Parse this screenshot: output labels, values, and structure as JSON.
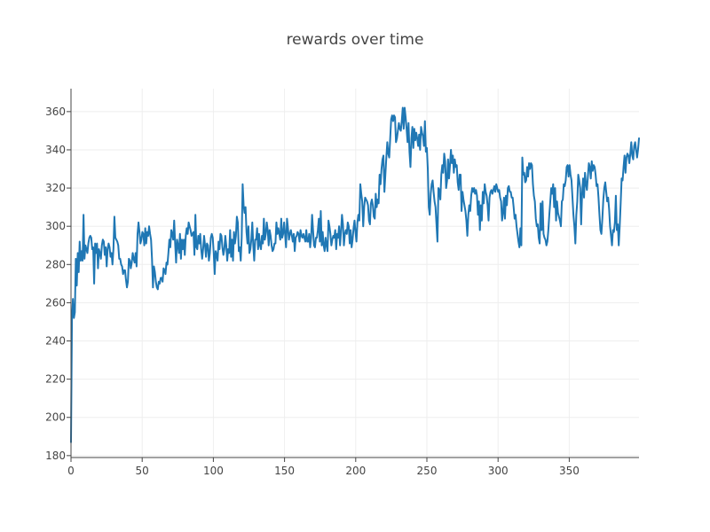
{
  "chart_data": {
    "type": "line",
    "title": "rewards over time",
    "xlabel": "",
    "ylabel": "",
    "xlim": [
      0,
      399
    ],
    "ylim": [
      179,
      372
    ],
    "x_ticks": [
      0,
      50,
      100,
      150,
      200,
      250,
      300,
      350
    ],
    "y_ticks": [
      180,
      200,
      220,
      240,
      260,
      280,
      300,
      320,
      340,
      360
    ],
    "grid": true,
    "legend": "none",
    "colors": {
      "series": "#1f77b4",
      "grid": "#eeeeee",
      "axis": "#444444",
      "text": "#444444"
    },
    "series": [
      {
        "values": [
          187,
          252,
          262,
          252,
          255,
          283,
          269,
          286,
          276,
          292,
          282,
          287,
          282,
          306,
          283,
          290,
          288,
          286,
          291,
          294,
          295,
          294,
          288,
          289,
          270,
          291,
          286,
          291,
          278,
          288,
          286,
          283,
          290,
          293,
          292,
          285,
          289,
          279,
          288,
          291,
          289,
          284,
          286,
          280,
          288,
          305,
          294,
          293,
          292,
          290,
          283,
          283,
          280,
          279,
          275,
          277,
          277,
          272,
          268,
          271,
          283,
          282,
          278,
          281,
          286,
          283,
          281,
          286,
          279,
          296,
          302,
          297,
          291,
          293,
          297,
          296,
          290,
          299,
          291,
          297,
          295,
          300,
          296,
          293,
          283,
          268,
          279,
          276,
          271,
          268,
          267,
          271,
          270,
          273,
          273,
          271,
          278,
          277,
          275,
          281,
          280,
          286,
          293,
          289,
          298,
          296,
          293,
          303,
          291,
          281,
          293,
          290,
          286,
          296,
          283,
          293,
          288,
          293,
          285,
          295,
          299,
          296,
          302,
          300,
          298,
          295,
          296,
          297,
          285,
          306,
          289,
          288,
          295,
          291,
          296,
          288,
          283,
          288,
          295,
          290,
          284,
          291,
          290,
          282,
          286,
          294,
          296,
          294,
          286,
          275,
          287,
          285,
          282,
          292,
          288,
          296,
          295,
          289,
          285,
          288,
          295,
          290,
          282,
          288,
          286,
          298,
          284,
          293,
          282,
          297,
          291,
          295,
          305,
          302,
          287,
          289,
          282,
          294,
          322,
          311,
          307,
          310,
          297,
          291,
          300,
          286,
          288,
          293,
          302,
          290,
          282,
          293,
          293,
          299,
          288,
          296,
          290,
          288,
          295,
          291
        ]
      },
      {
        "values": [
          304,
          293,
          296,
          302,
          298,
          290,
          298,
          295,
          290,
          287,
          288,
          291,
          291,
          302,
          296,
          299,
          296,
          293,
          304,
          294,
          296,
          302,
          296,
          289,
          304,
          299,
          293,
          296,
          298,
          295,
          292,
          296,
          287,
          294,
          295,
          297,
          296,
          292,
          298,
          295,
          294,
          296,
          294,
          292,
          298,
          292,
          292,
          296,
          289,
          294,
          306,
          298,
          290,
          289,
          294,
          294,
          298,
          304,
          292,
          308,
          290,
          297,
          290,
          287,
          294,
          290,
          287,
          303,
          300,
          296,
          290,
          293,
          295,
          294,
          298,
          288,
          296,
          294,
          300,
          290,
          297,
          306,
          301,
          290,
          296,
          298,
          296,
          302,
          300,
          291,
          298,
          289,
          293,
          299,
          303,
          297,
          292,
          302,
          306,
          303,
          322,
          317,
          313,
          300,
          310,
          315,
          314,
          313,
          311,
          303,
          301,
          312,
          314,
          311,
          305,
          304,
          317,
          310,
          314,
          312,
          327,
          322,
          330,
          335,
          337,
          318,
          327,
          336,
          344,
          338,
          336,
          346,
          356,
          358,
          355,
          358,
          357,
          344,
          346,
          350,
          354,
          351,
          350,
          355,
          362,
          351,
          362,
          357,
          351,
          344,
          354,
          339,
          331,
          346,
          352,
          341,
          351,
          345,
          349,
          346,
          342,
          348,
          340,
          352,
          349,
          347,
          342,
          355,
          339,
          341,
          330,
          310,
          306,
          317,
          322,
          324,
          318,
          313,
          310,
          301,
          292,
          320,
          319,
          314,
          327,
          332,
          328,
          338,
          334,
          320,
          324,
          335,
          325,
          332,
          340,
          333,
          337,
          328,
          335,
          331,
          332,
          323,
          319,
          327,
          327,
          308,
          318,
          314,
          311,
          308,
          303,
          295,
          306,
          311,
          308,
          316,
          320,
          318,
          320,
          317,
          319,
          316,
          306,
          313,
          298,
          311,
          303,
          318,
          312,
          322,
          318,
          316,
          311,
          303,
          315,
          318,
          319,
          317,
          319,
          321,
          318,
          322,
          320,
          318,
          319,
          315,
          313,
          303,
          307,
          315,
          304,
          316,
          311,
          320,
          321,
          318,
          318,
          315,
          315,
          310,
          304,
          306,
          300,
          296,
          292,
          289,
          299,
          290,
          336,
          327,
          328,
          323,
          324,
          331,
          326,
          333,
          330,
          333,
          332,
          322,
          316,
          313,
          304,
          300,
          301,
          294,
          291,
          312,
          298,
          313,
          296,
          294,
          293,
          290,
          292,
          298,
          306,
          313,
          320,
          317,
          322,
          310,
          320,
          303,
          313,
          307,
          305,
          303,
          300,
          313,
          314,
          322,
          321,
          324,
          331,
          332,
          326,
          332,
          327,
          324,
          315,
          306,
          300,
          291,
          306,
          313,
          327,
          324,
          320,
          301,
          317,
          325,
          315,
          328,
          322,
          319,
          326,
          333,
          331,
          325,
          334,
          329,
          332,
          331,
          327,
          321,
          322,
          315,
          306,
          298,
          296,
          304,
          314,
          320,
          323,
          318,
          313,
          315,
          309,
          300,
          295,
          290,
          298,
          297,
          302,
          316,
          298,
          301,
          290,
          300,
          312,
          325,
          324,
          331,
          337,
          328,
          336,
          338,
          337,
          333,
          338,
          344,
          337,
          335,
          342,
          344,
          340,
          336,
          340,
          346
        ]
      }
    ]
  }
}
